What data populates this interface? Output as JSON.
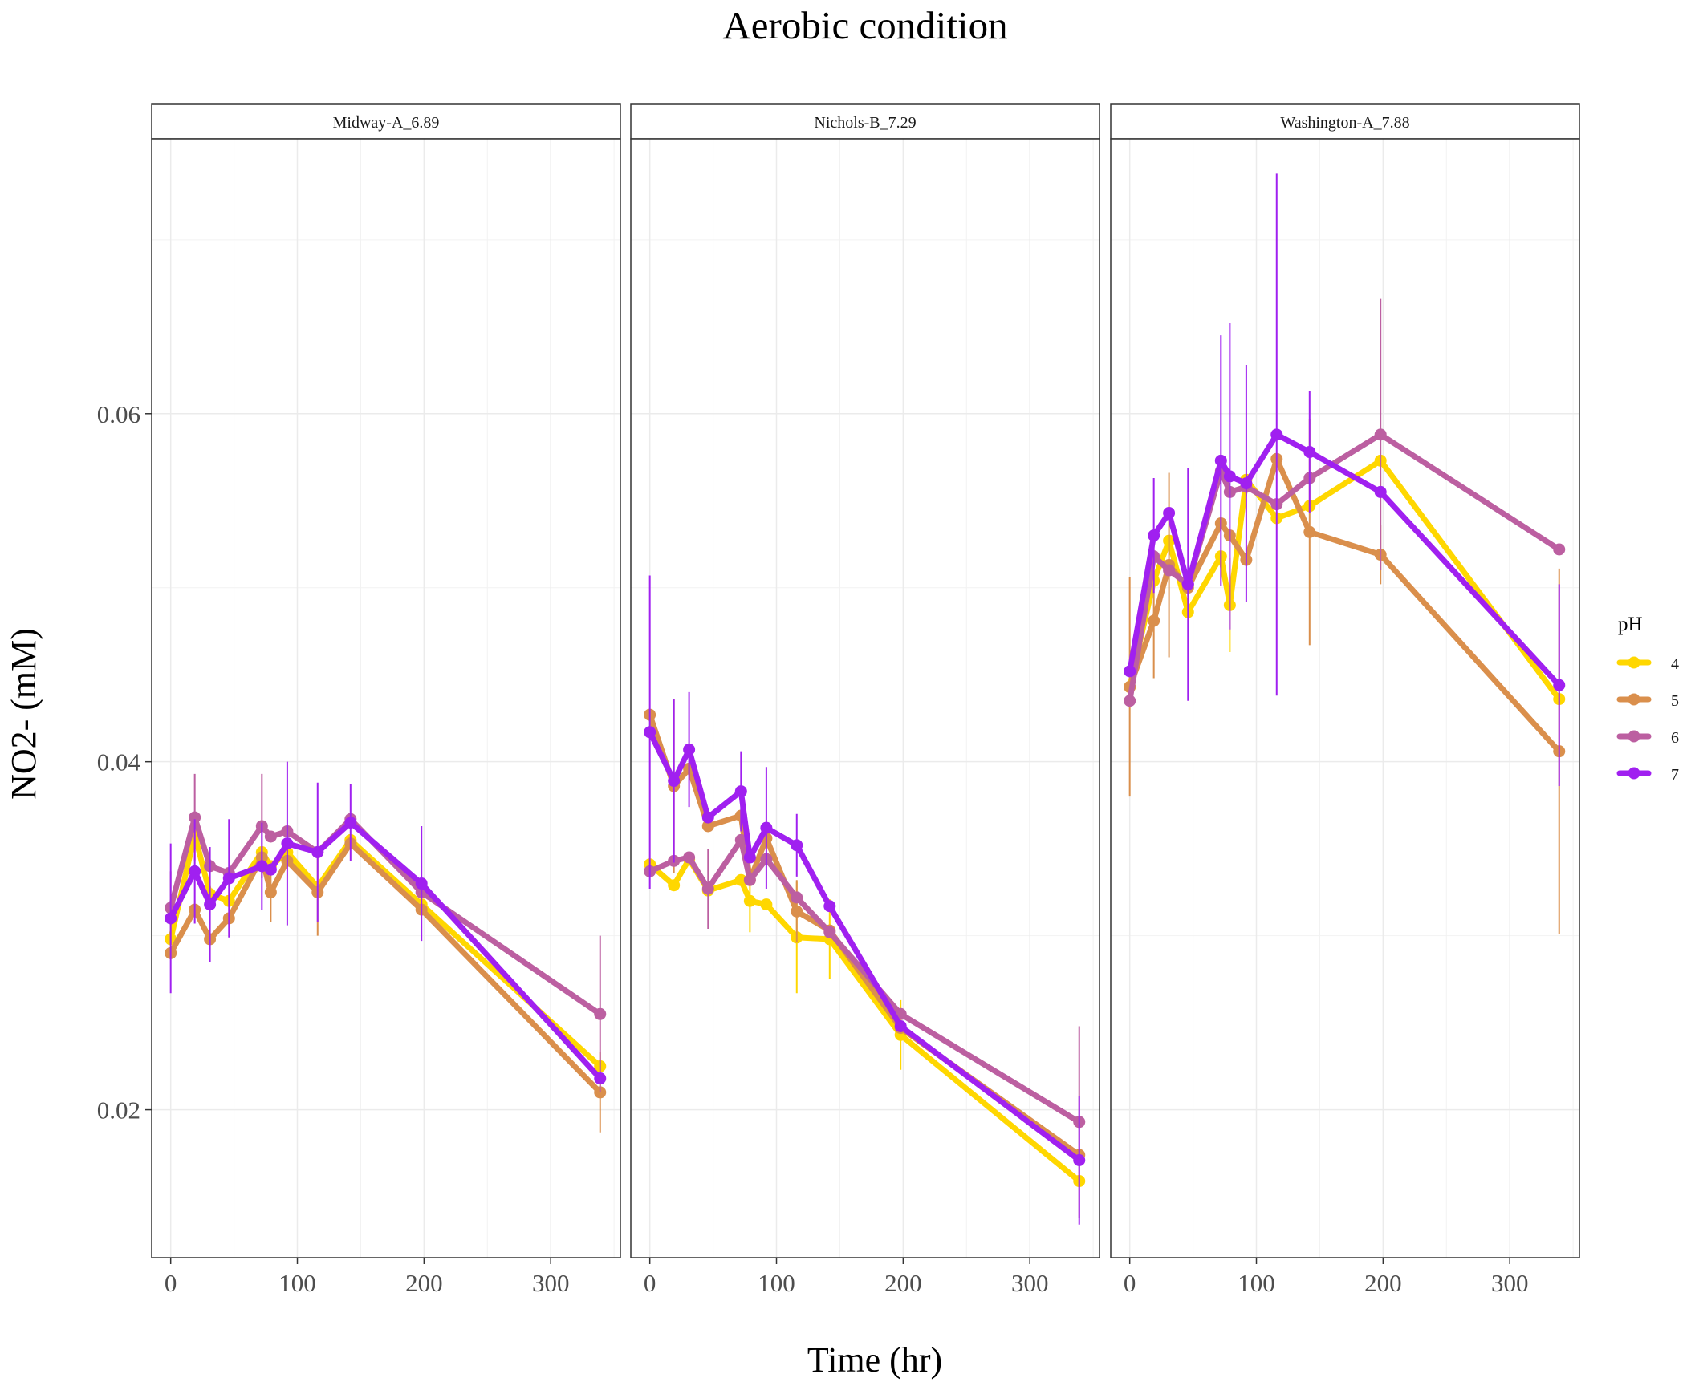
{
  "chart_data": {
    "type": "line",
    "title": "Aerobic condition",
    "xlabel": "Time (hr)",
    "ylabel": "NO2- (mM)",
    "xlim": [
      -15,
      355
    ],
    "ylim": [
      0.0115,
      0.0758
    ],
    "x_ticks": [
      0,
      100,
      200,
      300
    ],
    "x_tick_labels": [
      "0",
      "100",
      "200",
      "300"
    ],
    "y_ticks": [
      0.02,
      0.04,
      0.06
    ],
    "y_tick_labels": [
      "0.02",
      "0.04",
      "0.06"
    ],
    "grid": true,
    "legend": {
      "title": "pH",
      "position": "right",
      "entries": [
        "4",
        "5",
        "6",
        "7"
      ]
    },
    "series_colors": {
      "4": "#FFD700",
      "5": "#DA8F4C",
      "6": "#BC5FA1",
      "7": "#A020F0"
    },
    "panels": [
      {
        "label": "Midway-A_6.89",
        "series": [
          {
            "name": "4",
            "x": [
              0,
              19,
              31,
              46,
              72,
              79,
              92,
              116,
              142,
              198,
              339
            ],
            "y": [
              0.0298,
              0.0358,
              0.0324,
              0.032,
              0.0348,
              0.034,
              0.0348,
              0.0328,
              0.0355,
              0.0318,
              0.0225
            ],
            "err": [
              0,
              0,
              0,
              0,
              0,
              0,
              0,
              0,
              0,
              0,
              0
            ]
          },
          {
            "name": "5",
            "x": [
              0,
              19,
              31,
              46,
              72,
              79,
              92,
              116,
              142,
              198,
              339
            ],
            "y": [
              0.029,
              0.0315,
              0.0298,
              0.031,
              0.0345,
              0.0325,
              0.0343,
              0.0325,
              0.0353,
              0.0315,
              0.021
            ],
            "err": [
              0,
              0,
              0,
              0,
              0,
              0.0017,
              0,
              0.0025,
              0,
              0,
              0.0023
            ]
          },
          {
            "name": "6",
            "x": [
              0,
              19,
              31,
              46,
              72,
              79,
              92,
              116,
              142,
              198,
              339
            ],
            "y": [
              0.0316,
              0.0368,
              0.034,
              0.0336,
              0.0363,
              0.0357,
              0.036,
              0.0348,
              0.0367,
              0.0325,
              0.0255
            ],
            "err": [
              0.0021,
              0.0025,
              0,
              0,
              0.003,
              0,
              0,
              0,
              0,
              0,
              0.0045
            ]
          },
          {
            "name": "7",
            "x": [
              0,
              19,
              31,
              46,
              72,
              79,
              92,
              116,
              142,
              198,
              339
            ],
            "y": [
              0.031,
              0.0337,
              0.0318,
              0.0333,
              0.034,
              0.0338,
              0.0353,
              0.0348,
              0.0365,
              0.033,
              0.0218
            ],
            "err": [
              0.0043,
              0.003,
              0.0033,
              0.0034,
              0.0025,
              0,
              0.0047,
              0.004,
              0.0022,
              0.0033,
              0
            ]
          }
        ]
      },
      {
        "label": "Nichols-B_7.29",
        "series": [
          {
            "name": "4",
            "x": [
              0,
              19,
              31,
              46,
              72,
              79,
              92,
              116,
              142,
              198,
              339
            ],
            "y": [
              0.0341,
              0.0329,
              0.0344,
              0.0326,
              0.0332,
              0.032,
              0.0318,
              0.0299,
              0.0298,
              0.0243,
              0.0159
            ],
            "err": [
              0,
              0,
              0,
              0,
              0,
              0.0018,
              0,
              0.0032,
              0.0023,
              0.002,
              0
            ]
          },
          {
            "name": "5",
            "x": [
              0,
              19,
              31,
              46,
              72,
              79,
              92,
              116,
              142,
              198,
              339
            ],
            "y": [
              0.0427,
              0.0386,
              0.0396,
              0.0363,
              0.0369,
              0.0332,
              0.0356,
              0.0314,
              0.0303,
              0.0247,
              0.0174
            ],
            "err": [
              0,
              0.005,
              0,
              0,
              0,
              0,
              0,
              0.0018,
              0,
              0,
              0
            ]
          },
          {
            "name": "6",
            "x": [
              0,
              19,
              31,
              46,
              72,
              79,
              92,
              116,
              142,
              198,
              339
            ],
            "y": [
              0.0337,
              0.0343,
              0.0345,
              0.0327,
              0.0355,
              0.0332,
              0.0344,
              0.0322,
              0.0302,
              0.0255,
              0.0193
            ],
            "err": [
              0,
              0,
              0,
              0.0023,
              0,
              0,
              0,
              0,
              0,
              0,
              0.0055
            ]
          },
          {
            "name": "7",
            "x": [
              0,
              19,
              31,
              46,
              72,
              79,
              92,
              116,
              142,
              198,
              339
            ],
            "y": [
              0.0417,
              0.0389,
              0.0407,
              0.0368,
              0.0383,
              0.0345,
              0.0362,
              0.0352,
              0.0317,
              0.0248,
              0.0171
            ],
            "err": [
              0.009,
              0.0047,
              0.0033,
              0,
              0.0023,
              0,
              0.0035,
              0.0018,
              0,
              0,
              0.0037
            ]
          }
        ]
      },
      {
        "label": "Washington-A_7.88",
        "series": [
          {
            "name": "4",
            "x": [
              0,
              19,
              31,
              46,
              72,
              79,
              92,
              116,
              142,
              198,
              339
            ],
            "y": [
              0.0443,
              0.0504,
              0.0527,
              0.0486,
              0.0518,
              0.049,
              0.0562,
              0.054,
              0.0547,
              0.0573,
              0.0436
            ],
            "err": [
              0,
              0,
              0,
              0,
              0,
              0.0027,
              0,
              0,
              0,
              0,
              0
            ]
          },
          {
            "name": "5",
            "x": [
              0,
              19,
              31,
              46,
              72,
              79,
              92,
              116,
              142,
              198,
              339
            ],
            "y": [
              0.0443,
              0.0481,
              0.0513,
              0.05,
              0.0537,
              0.053,
              0.0516,
              0.0574,
              0.0532,
              0.0519,
              0.0406
            ],
            "err": [
              0.0063,
              0.0033,
              0.0053,
              0,
              0,
              0,
              0,
              0,
              0.0065,
              0.0017,
              0.0105
            ]
          },
          {
            "name": "6",
            "x": [
              0,
              19,
              31,
              46,
              72,
              79,
              92,
              116,
              142,
              198,
              339
            ],
            "y": [
              0.0435,
              0.0518,
              0.051,
              0.0502,
              0.0567,
              0.0555,
              0.0558,
              0.0548,
              0.0563,
              0.0588,
              0.0522
            ],
            "err": [
              0,
              0,
              0,
              0,
              0,
              0,
              0,
              0,
              0,
              0.0078,
              0
            ]
          },
          {
            "name": "7",
            "x": [
              0,
              19,
              31,
              46,
              72,
              79,
              92,
              116,
              142,
              198,
              339
            ],
            "y": [
              0.0452,
              0.053,
              0.0543,
              0.0502,
              0.0573,
              0.0564,
              0.056,
              0.0588,
              0.0578,
              0.0555,
              0.0444
            ],
            "err": [
              0,
              0.0033,
              0,
              0.0067,
              0.0072,
              0.0088,
              0.0068,
              0.015,
              0.0035,
              0,
              0.0058
            ]
          }
        ]
      }
    ]
  }
}
